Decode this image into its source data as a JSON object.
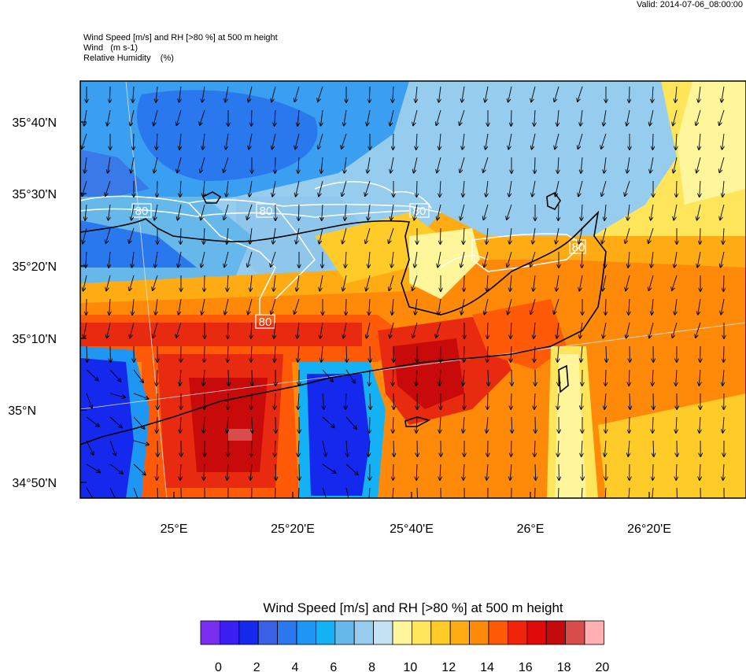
{
  "valid_time": "Valid: 2014-07-06_08:00:00",
  "header": {
    "line1": "Wind Speed [m/s] and RH [>80 %] at 500 m height",
    "line2": "Wind   (m s-1)",
    "line3": "Relative Humidity    (%)"
  },
  "axes": {
    "lat_labels": [
      "35°40'N",
      "35°30'N",
      "35°20'N",
      "35°10'N",
      "35°N",
      "34°50'N"
    ],
    "lon_labels": [
      "25°E",
      "25°20'E",
      "25°40'E",
      "26°E",
      "26°20'E"
    ]
  },
  "contour_labels": [
    "80",
    "80",
    "80",
    "80",
    "80"
  ],
  "colorbar": {
    "title": "Wind Speed [m/s] and RH [>80 %] at 500 m height",
    "tick_labels": [
      "0",
      "2",
      "4",
      "6",
      "8",
      "10",
      "12",
      "14",
      "16",
      "18",
      "20"
    ],
    "colors": [
      "#7a2ef0",
      "#3a1ef2",
      "#1428ee",
      "#3a60e6",
      "#2a78ee",
      "#1e96f4",
      "#14b2f4",
      "#66b8ea",
      "#96cced",
      "#c4e2f4",
      "#fff59a",
      "#ffe55a",
      "#ffcb28",
      "#ffac14",
      "#ff8a0a",
      "#ff5a08",
      "#f0240c",
      "#e00a0a",
      "#c40a0a",
      "#d84c4c",
      "#ffb0b0"
    ]
  },
  "palette": {
    "deep_blue": "#1a30e0",
    "mid_blue": "#3a7ae8",
    "light_blue": "#8ec6ec",
    "pale_blue": "#c4e2f4",
    "pale_yellow": "#fff59a",
    "orange": "#ffac14",
    "red": "#e82a10",
    "dark_red": "#c80a0a"
  }
}
